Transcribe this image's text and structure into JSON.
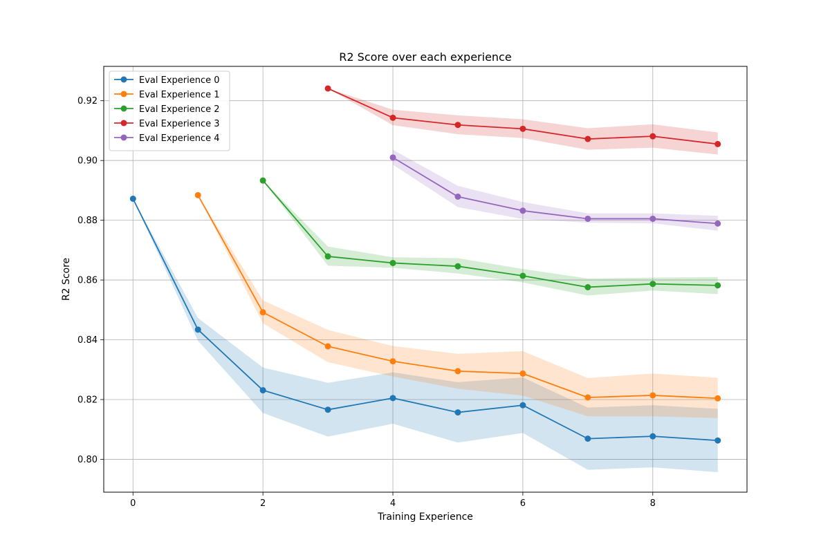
{
  "chart_data": {
    "type": "line",
    "title": "R2 Score over each experience",
    "xlabel": "Training Experience",
    "ylabel": "R2 Score",
    "xlim": [
      -0.45,
      9.45
    ],
    "ylim": [
      0.789,
      0.9315
    ],
    "xticks": [
      0,
      2,
      4,
      6,
      8
    ],
    "xtick_labels": [
      "0",
      "2",
      "4",
      "6",
      "8"
    ],
    "yticks": [
      0.8,
      0.82,
      0.84,
      0.86,
      0.88,
      0.9,
      0.92
    ],
    "ytick_labels": [
      "0.80",
      "0.82",
      "0.84",
      "0.86",
      "0.88",
      "0.90",
      "0.92"
    ],
    "grid": true,
    "legend_position": "top-left",
    "series": [
      {
        "name": "Eval Experience 0",
        "color": "#1f77b4",
        "x": [
          0,
          1,
          2,
          3,
          4,
          5,
          6,
          7,
          8,
          9
        ],
        "y": [
          0.8872,
          0.8434,
          0.8231,
          0.8166,
          0.8205,
          0.8157,
          0.8181,
          0.8069,
          0.8077,
          0.8063
        ],
        "lower": [
          0.8872,
          0.8397,
          0.8155,
          0.8076,
          0.8119,
          0.8056,
          0.8088,
          0.7965,
          0.7973,
          0.7957
        ],
        "upper": [
          0.8872,
          0.8473,
          0.8307,
          0.8256,
          0.8291,
          0.8258,
          0.8274,
          0.8173,
          0.8181,
          0.8169
        ]
      },
      {
        "name": "Eval Experience 1",
        "color": "#ff7f0e",
        "x": [
          1,
          2,
          3,
          4,
          5,
          6,
          7,
          8,
          9
        ],
        "y": [
          0.8884,
          0.8492,
          0.8378,
          0.8328,
          0.8295,
          0.8287,
          0.8207,
          0.8214,
          0.8204
        ],
        "lower": [
          0.8884,
          0.8455,
          0.8325,
          0.8277,
          0.8236,
          0.8213,
          0.8144,
          0.8144,
          0.8138
        ],
        "upper": [
          0.8884,
          0.8532,
          0.8433,
          0.8379,
          0.8353,
          0.8362,
          0.8272,
          0.8287,
          0.8273
        ]
      },
      {
        "name": "Eval Experience 2",
        "color": "#2ca02c",
        "x": [
          2,
          3,
          4,
          5,
          6,
          7,
          8,
          9
        ],
        "y": [
          0.8933,
          0.8679,
          0.8657,
          0.8646,
          0.8614,
          0.8576,
          0.8587,
          0.8582
        ],
        "lower": [
          0.8933,
          0.8648,
          0.8641,
          0.8622,
          0.8592,
          0.8548,
          0.8565,
          0.8553
        ],
        "upper": [
          0.8933,
          0.8712,
          0.8676,
          0.8673,
          0.8637,
          0.8605,
          0.8608,
          0.861
        ]
      },
      {
        "name": "Eval Experience 3",
        "color": "#d62728",
        "x": [
          3,
          4,
          5,
          6,
          7,
          8,
          9
        ],
        "y": [
          0.9241,
          0.9143,
          0.9119,
          0.9106,
          0.9072,
          0.9081,
          0.9055
        ],
        "lower": [
          0.9241,
          0.9118,
          0.9088,
          0.9075,
          0.9036,
          0.9043,
          0.902
        ],
        "upper": [
          0.9241,
          0.917,
          0.9151,
          0.9138,
          0.9108,
          0.9121,
          0.9094
        ]
      },
      {
        "name": "Eval Experience 4",
        "color": "#9467bd",
        "x": [
          4,
          5,
          6,
          7,
          8,
          9
        ],
        "y": [
          0.901,
          0.8879,
          0.8832,
          0.8805,
          0.8805,
          0.8789
        ],
        "lower": [
          0.8986,
          0.8844,
          0.8804,
          0.8792,
          0.879,
          0.8765
        ],
        "upper": [
          0.9036,
          0.8915,
          0.8861,
          0.8823,
          0.8823,
          0.8815
        ]
      }
    ]
  }
}
